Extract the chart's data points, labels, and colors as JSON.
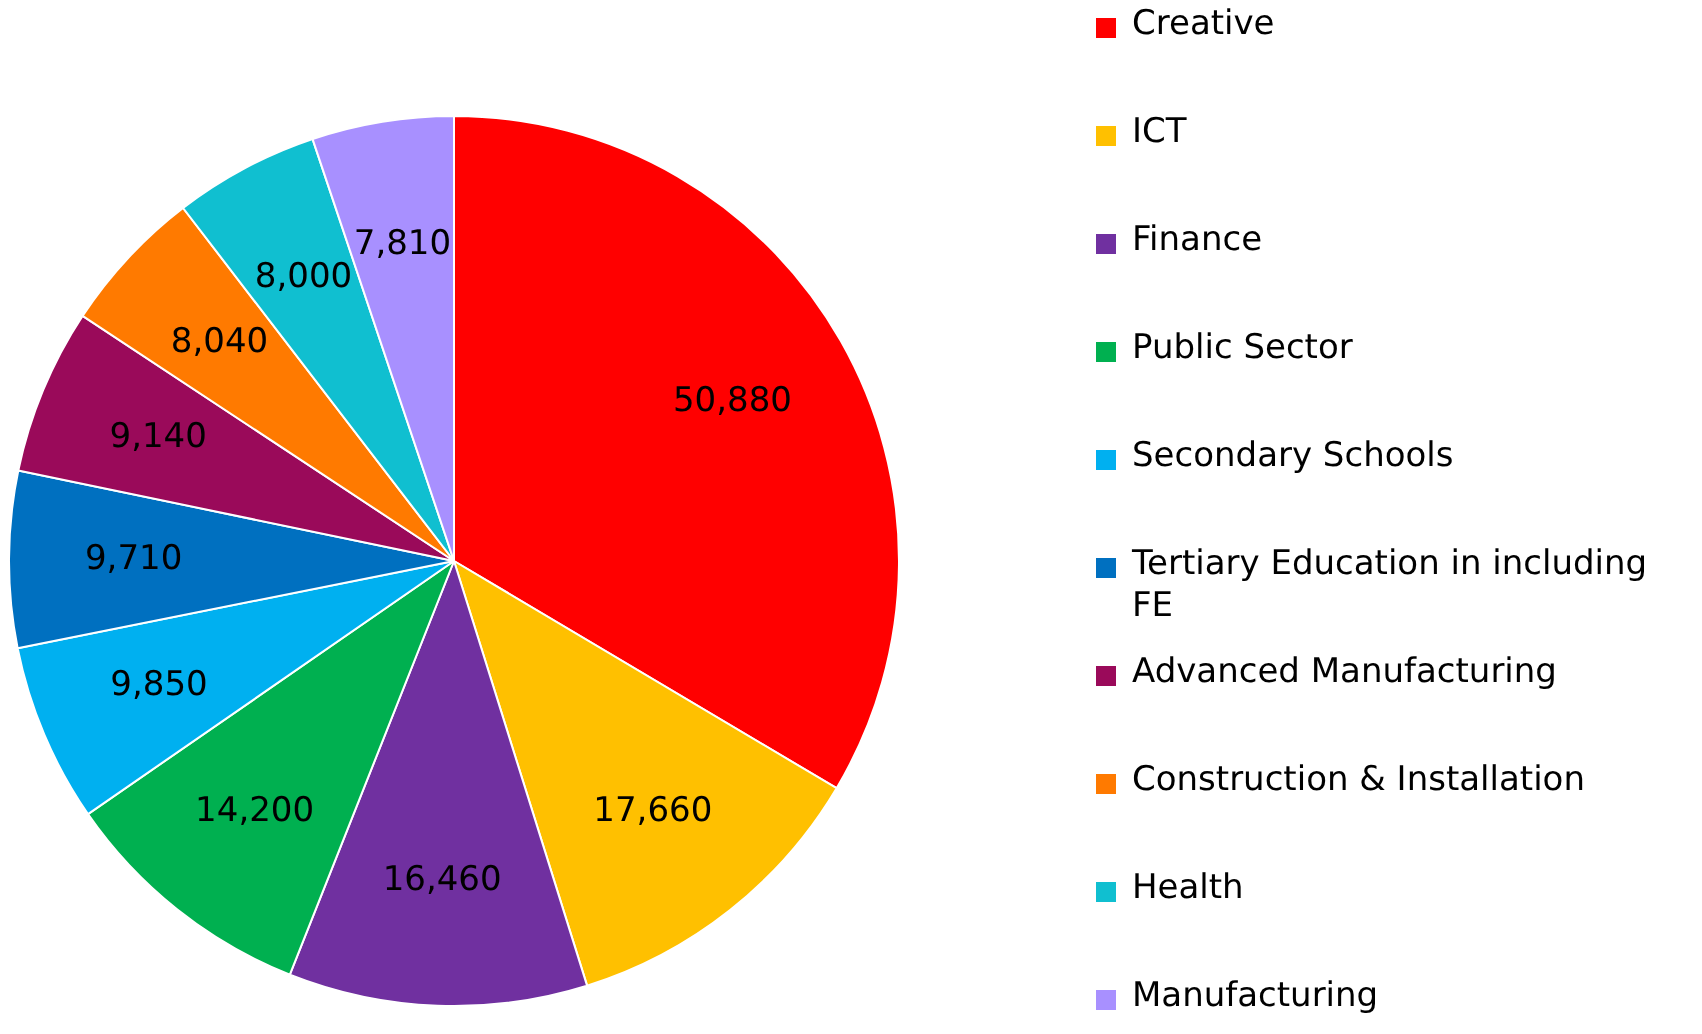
{
  "chart_data": {
    "type": "pie",
    "categories": [
      "Creative",
      "ICT",
      "Finance",
      "Public Sector",
      "Secondary Schools",
      "Tertiary Education in including FE",
      "Advanced Manufacturing",
      "Construction & Installation",
      "Health",
      "Manufacturing"
    ],
    "values": [
      50880,
      17660,
      16460,
      14200,
      9850,
      9710,
      9140,
      8040,
      8000,
      7810
    ],
    "colors": [
      "#ff0000",
      "#ffc000",
      "#7030a0",
      "#00b050",
      "#00b0f0",
      "#0070c0",
      "#9a0a5a",
      "#ff7a00",
      "#10bfd0",
      "#a890ff"
    ],
    "value_labels": [
      "50,880",
      "17,660",
      "16,460",
      "14,200",
      "9,850",
      "9,710",
      "9,140",
      "8,040",
      "8,000",
      "7,810"
    ],
    "legend": "right"
  }
}
